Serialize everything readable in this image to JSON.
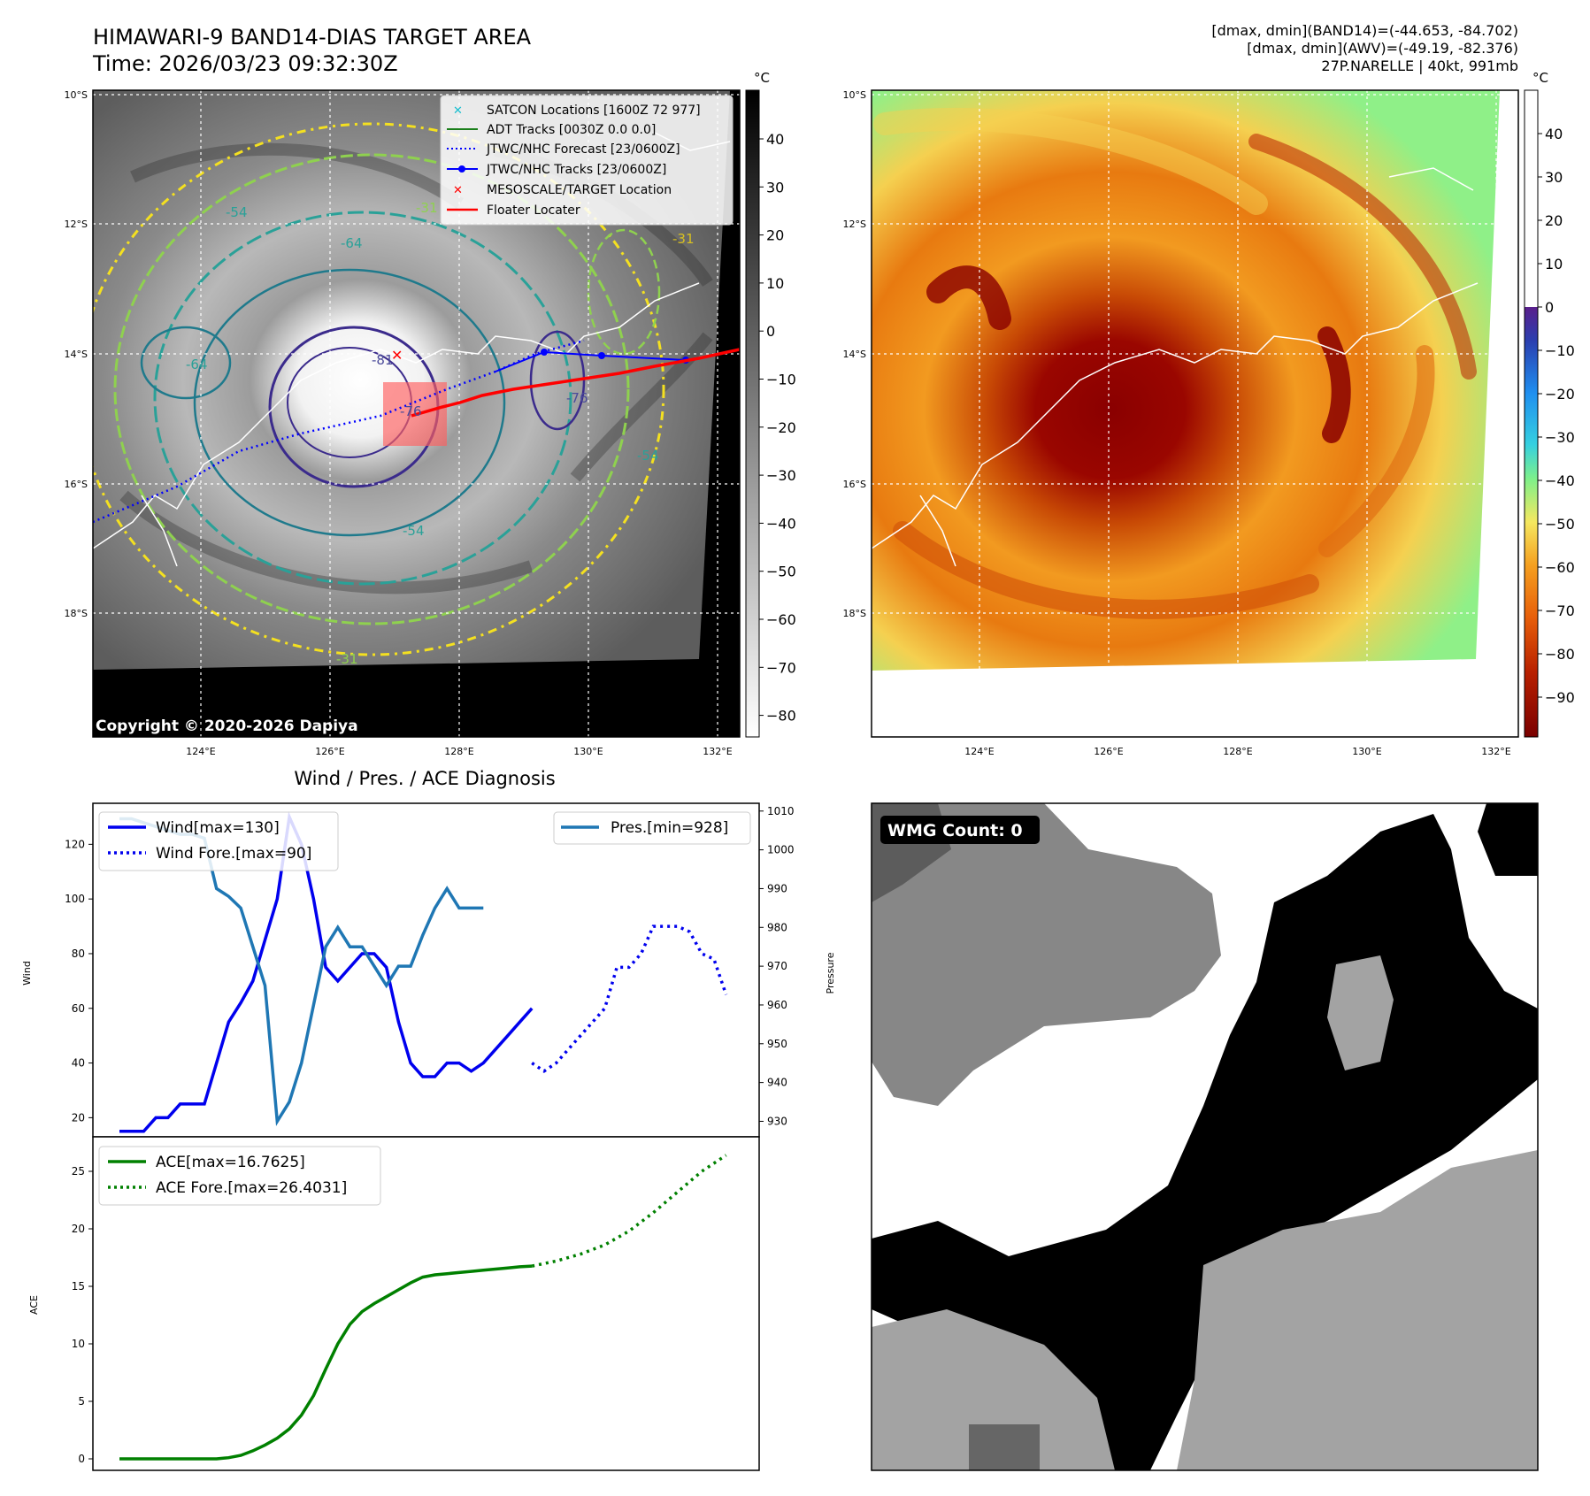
{
  "header": {
    "title": "HIMAWARI-9 BAND14-DIAS TARGET AREA",
    "time": "Time: 2026/03/23 09:32:30Z",
    "stats_line1": "[dmax, dmin](BAND14)=(-44.653, -84.702)",
    "stats_line2": "[dmax, dmin](AWV)=(-49.19, -82.376)",
    "stats_line3": "27P.NARELLE | 40kt, 991mb"
  },
  "map_axes": {
    "lat_labels": [
      "10°S",
      "12°S",
      "14°S",
      "16°S",
      "18°S"
    ],
    "lon_labels": [
      "124°E",
      "126°E",
      "128°E",
      "130°E",
      "132°E"
    ]
  },
  "ir_panel": {
    "copyright": "Copyright © 2020-2026 Dapiya",
    "colorbar_unit": "°C",
    "colorbar_ticks": [
      "40",
      "30",
      "20",
      "10",
      "0",
      "−10",
      "−20",
      "−30",
      "−40",
      "−50",
      "−60",
      "−70",
      "−80"
    ],
    "contour_labels": [
      "-81",
      "-76",
      "-64",
      "-54",
      "-31",
      "-31",
      "-64",
      "-54",
      "-31",
      "-76",
      "-54"
    ],
    "legend": [
      {
        "label": "SATCON Locations [1600Z 72 977]",
        "color": "#17becf"
      },
      {
        "label": "ADT Tracks [0030Z 0.0 0.0]",
        "color": "#1a7f1a"
      },
      {
        "label": "JTWC/NHC Forecast [23/0600Z]",
        "color": "#0000ff"
      },
      {
        "label": "JTWC/NHC Tracks [23/0600Z]",
        "color": "#0000ff"
      },
      {
        "label": "MESOSCALE/TARGET Location",
        "color": "#ff0000"
      },
      {
        "label": "Floater Locater",
        "color": "#ff0000"
      }
    ]
  },
  "awv_panel": {
    "colorbar_unit": "°C",
    "colorbar_ticks": [
      "40",
      "30",
      "20",
      "10",
      "0",
      "−10",
      "−20",
      "−30",
      "−40",
      "−50",
      "−60",
      "−70",
      "−80",
      "−90"
    ]
  },
  "wmg_panel": {
    "badge": "WMG Count: 0"
  },
  "chart_data": [
    {
      "type": "line",
      "title": "Wind / Pres. / ACE Diagnosis",
      "xlabel": "",
      "ylabel": "Wind",
      "y2label": "Pressure",
      "ylim": [
        13,
        135
      ],
      "y2lim": [
        926,
        1012
      ],
      "yticks": [
        20,
        40,
        60,
        80,
        100,
        120
      ],
      "y2ticks": [
        930,
        940,
        950,
        960,
        970,
        980,
        990,
        1000,
        1010
      ],
      "x": [
        0,
        1,
        2,
        3,
        4,
        5,
        6,
        7,
        8,
        9,
        10,
        11,
        12,
        13,
        14,
        15,
        16,
        17,
        18,
        19,
        20,
        21,
        22,
        23,
        24,
        25,
        26,
        27,
        28,
        29,
        30,
        31,
        32,
        33,
        34,
        35,
        36,
        37,
        38
      ],
      "series": [
        {
          "name": "Wind[max=130]",
          "color": "#0000ee",
          "style": "solid",
          "x": [
            0,
            1,
            2,
            3,
            4,
            5,
            6,
            7,
            8,
            9,
            10,
            11,
            12,
            13,
            14,
            15,
            16,
            17,
            18,
            19,
            20,
            21,
            22,
            23,
            24,
            25,
            26,
            27,
            28,
            29,
            30,
            31,
            32,
            33,
            34
          ],
          "values": [
            15,
            15,
            15,
            20,
            20,
            25,
            25,
            25,
            40,
            55,
            62,
            70,
            85,
            100,
            130,
            120,
            100,
            75,
            70,
            75,
            80,
            80,
            75,
            55,
            40,
            35,
            35,
            40,
            40,
            37,
            40,
            45,
            50,
            55,
            60
          ]
        },
        {
          "name": "Wind Fore.[max=90]",
          "color": "#0000ee",
          "style": "dotted",
          "x": [
            34,
            35,
            36,
            37,
            38,
            39,
            40,
            41,
            42,
            43,
            44,
            45,
            46,
            47,
            48,
            49,
            50
          ],
          "values": [
            40,
            37,
            40,
            45,
            50,
            55,
            60,
            75,
            75,
            80,
            90,
            90,
            90,
            88,
            80,
            78,
            65
          ]
        },
        {
          "name": "Pres.[min=928]",
          "color": "#1f77b4",
          "style": "solid",
          "axis": "y2",
          "x": [
            0,
            1,
            2,
            3,
            4,
            5,
            6,
            7,
            8,
            9,
            10,
            11,
            12,
            13,
            14,
            15,
            16,
            17,
            18,
            19,
            20,
            21,
            22,
            23,
            24,
            25,
            26,
            27,
            28,
            29,
            30
          ],
          "values": [
            1008,
            1008,
            1007,
            1006,
            1005,
            1004,
            1004,
            1003,
            990,
            988,
            985,
            975,
            965,
            930,
            935,
            945,
            960,
            975,
            980,
            975,
            975,
            970,
            965,
            970,
            970,
            978,
            985,
            990,
            985,
            985,
            985
          ]
        }
      ]
    },
    {
      "type": "line",
      "ylabel": "ACE",
      "ylim": [
        -1,
        28
      ],
      "yticks": [
        0,
        5,
        10,
        15,
        20,
        25
      ],
      "series": [
        {
          "name": "ACE[max=16.7625]",
          "color": "#008000",
          "style": "solid",
          "x": [
            0,
            2,
            4,
            6,
            8,
            9,
            10,
            11,
            12,
            13,
            14,
            15,
            16,
            17,
            18,
            19,
            20,
            21,
            22,
            23,
            24,
            25,
            26,
            27,
            28,
            29,
            30,
            31,
            32,
            33,
            34
          ],
          "values": [
            0,
            0,
            0,
            0,
            0,
            0.1,
            0.3,
            0.7,
            1.2,
            1.8,
            2.6,
            3.8,
            5.5,
            7.8,
            10.0,
            11.7,
            12.8,
            13.5,
            14.1,
            14.7,
            15.3,
            15.8,
            16.0,
            16.1,
            16.2,
            16.3,
            16.4,
            16.5,
            16.6,
            16.7,
            16.76
          ]
        },
        {
          "name": "ACE Fore.[max=26.4031]",
          "color": "#008000",
          "style": "dotted",
          "x": [
            34,
            36,
            38,
            40,
            42,
            44,
            46,
            48,
            50
          ],
          "values": [
            16.76,
            17.2,
            17.8,
            18.6,
            19.8,
            21.4,
            23.2,
            25.0,
            26.4
          ]
        }
      ]
    }
  ]
}
